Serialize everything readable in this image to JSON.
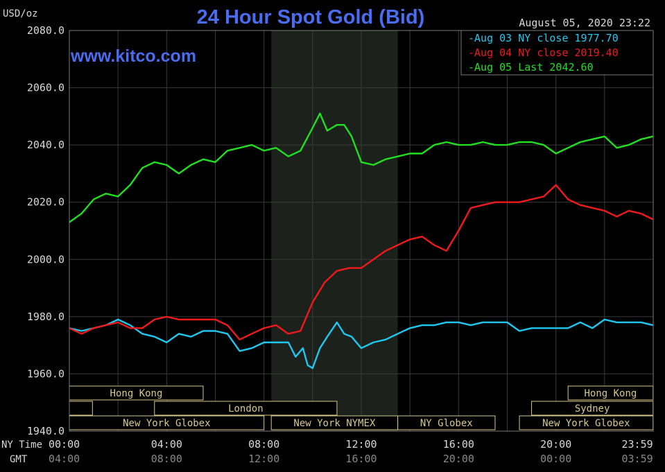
{
  "chart_data": {
    "type": "line",
    "title": "24 Hour Spot Gold (Bid)",
    "subtitle": "www.kitco.com",
    "ylabel": "USD/oz",
    "timestamp": "August 05, 2020 23:22",
    "ylim": [
      1940,
      2080
    ],
    "y_ticks": [
      "2080.0",
      "2060.0",
      "2040.0",
      "2020.0",
      "2000.0",
      "1980.0",
      "1960.0",
      "1940.0"
    ],
    "x_range": [
      0,
      24
    ],
    "x_ticks_ny": [
      "00:00",
      "04:00",
      "08:00",
      "12:00",
      "16:00",
      "20:00",
      "23:59"
    ],
    "x_ticks_gmt": [
      "04:00",
      "08:00",
      "12:00",
      "16:00",
      "20:00",
      "00:00",
      "03:59"
    ],
    "x_axis_label_ny": "NY Time",
    "x_axis_label_gmt": "GMT",
    "grid": true,
    "legend_position": "top-right",
    "colors": {
      "background": "#000000",
      "grid": "#3a3a3a",
      "frame": "#7a7a7a",
      "title": "#4a6cf0",
      "axis_text": "#d8d8d8",
      "gmt_text": "#888888",
      "nymex_shade": "#1c211c",
      "session_box": "#d8c88a"
    },
    "nymex_shade_hours": [
      8.3,
      13.5
    ],
    "series": [
      {
        "name": "Aug 03 NY close 1977.70",
        "color": "#20c8f0",
        "x": [
          0,
          0.5,
          1,
          1.5,
          2,
          2.5,
          3,
          3.5,
          4,
          4.5,
          5,
          5.5,
          6,
          6.5,
          7,
          7.5,
          8,
          8.5,
          9,
          9.3,
          9.6,
          9.8,
          10,
          10.3,
          10.6,
          11,
          11.3,
          11.6,
          12,
          12.5,
          13,
          13.5,
          14,
          14.5,
          15,
          15.5,
          16,
          16.5,
          17,
          17.5,
          18,
          18.5,
          19,
          19.5,
          20,
          20.5,
          21,
          21.5,
          22,
          22.5,
          23,
          23.5,
          23.99
        ],
        "values": [
          1976,
          1975,
          1976,
          1977,
          1979,
          1977,
          1974,
          1973,
          1971,
          1974,
          1973,
          1975,
          1975,
          1974,
          1968,
          1969,
          1971,
          1971,
          1971,
          1966,
          1969,
          1963,
          1962,
          1969,
          1973,
          1978,
          1974,
          1973,
          1969,
          1971,
          1972,
          1974,
          1976,
          1977,
          1977,
          1978,
          1978,
          1977,
          1978,
          1978,
          1978,
          1975,
          1976,
          1976,
          1976,
          1976,
          1978,
          1976,
          1979,
          1978,
          1978,
          1978,
          1977
        ]
      },
      {
        "name": "Aug 04 NY close 2019.40",
        "color": "#f01a1a",
        "x": [
          0,
          0.5,
          1,
          1.5,
          2,
          2.5,
          3,
          3.5,
          4,
          4.5,
          5,
          5.5,
          6,
          6.5,
          7,
          7.5,
          8,
          8.5,
          9,
          9.5,
          10,
          10.5,
          11,
          11.5,
          12,
          12.5,
          13,
          13.5,
          14,
          14.5,
          15,
          15.5,
          16,
          16.5,
          17,
          17.5,
          18,
          18.5,
          19,
          19.5,
          20,
          20.5,
          21,
          21.5,
          22,
          22.5,
          23,
          23.5,
          23.99
        ],
        "values": [
          1976,
          1974,
          1976,
          1977,
          1978,
          1976,
          1976,
          1979,
          1980,
          1979,
          1979,
          1979,
          1979,
          1977,
          1972,
          1974,
          1976,
          1977,
          1974,
          1975,
          1985,
          1992,
          1996,
          1997,
          1997,
          2000,
          2003,
          2005,
          2007,
          2008,
          2005,
          2003,
          2010,
          2018,
          2019,
          2020,
          2020,
          2020,
          2021,
          2022,
          2026,
          2021,
          2019,
          2018,
          2017,
          2015,
          2017,
          2016,
          2014
        ]
      },
      {
        "name": "Aug 05 Last 2042.60",
        "color": "#20e020",
        "x": [
          0,
          0.5,
          1,
          1.5,
          2,
          2.5,
          3,
          3.5,
          4,
          4.5,
          5,
          5.5,
          6,
          6.5,
          7,
          7.5,
          8,
          8.5,
          9,
          9.5,
          10,
          10.3,
          10.6,
          11,
          11.3,
          11.6,
          12,
          12.5,
          13,
          13.5,
          14,
          14.5,
          15,
          15.5,
          16,
          16.5,
          17,
          17.5,
          18,
          18.5,
          19,
          19.5,
          20,
          20.5,
          21,
          21.5,
          22,
          22.5,
          23,
          23.5,
          23.99
        ],
        "values": [
          2013,
          2016,
          2021,
          2023,
          2022,
          2026,
          2032,
          2034,
          2033,
          2030,
          2033,
          2035,
          2034,
          2038,
          2039,
          2040,
          2038,
          2039,
          2036,
          2038,
          2046,
          2051,
          2045,
          2047,
          2047,
          2043,
          2034,
          2033,
          2035,
          2036,
          2037,
          2037,
          2040,
          2041,
          2040,
          2040,
          2041,
          2040,
          2040,
          2041,
          2041,
          2040,
          2037,
          2039,
          2041,
          2042,
          2043,
          2039,
          2040,
          2042,
          2043
        ]
      }
    ],
    "session_rows": [
      [
        {
          "label": "Hong Kong",
          "start": 0,
          "end": 5.5
        },
        {
          "label": "Hong Kong",
          "start": 20.5,
          "end": 23.99
        }
      ],
      [
        {
          "label": "",
          "start": 0,
          "end": 0.95
        },
        {
          "label": "London",
          "start": 3.5,
          "end": 11.0
        },
        {
          "label": "Sydney",
          "start": 19.0,
          "end": 23.99
        }
      ],
      [
        {
          "label": "New York Globex",
          "start": 0,
          "end": 8.0
        },
        {
          "label": "New York NYMEX",
          "start": 8.3,
          "end": 13.5
        },
        {
          "label": "NY Globex",
          "start": 13.5,
          "end": 17.5
        },
        {
          "label": "New York Globex",
          "start": 18.5,
          "end": 23.99
        }
      ]
    ]
  }
}
